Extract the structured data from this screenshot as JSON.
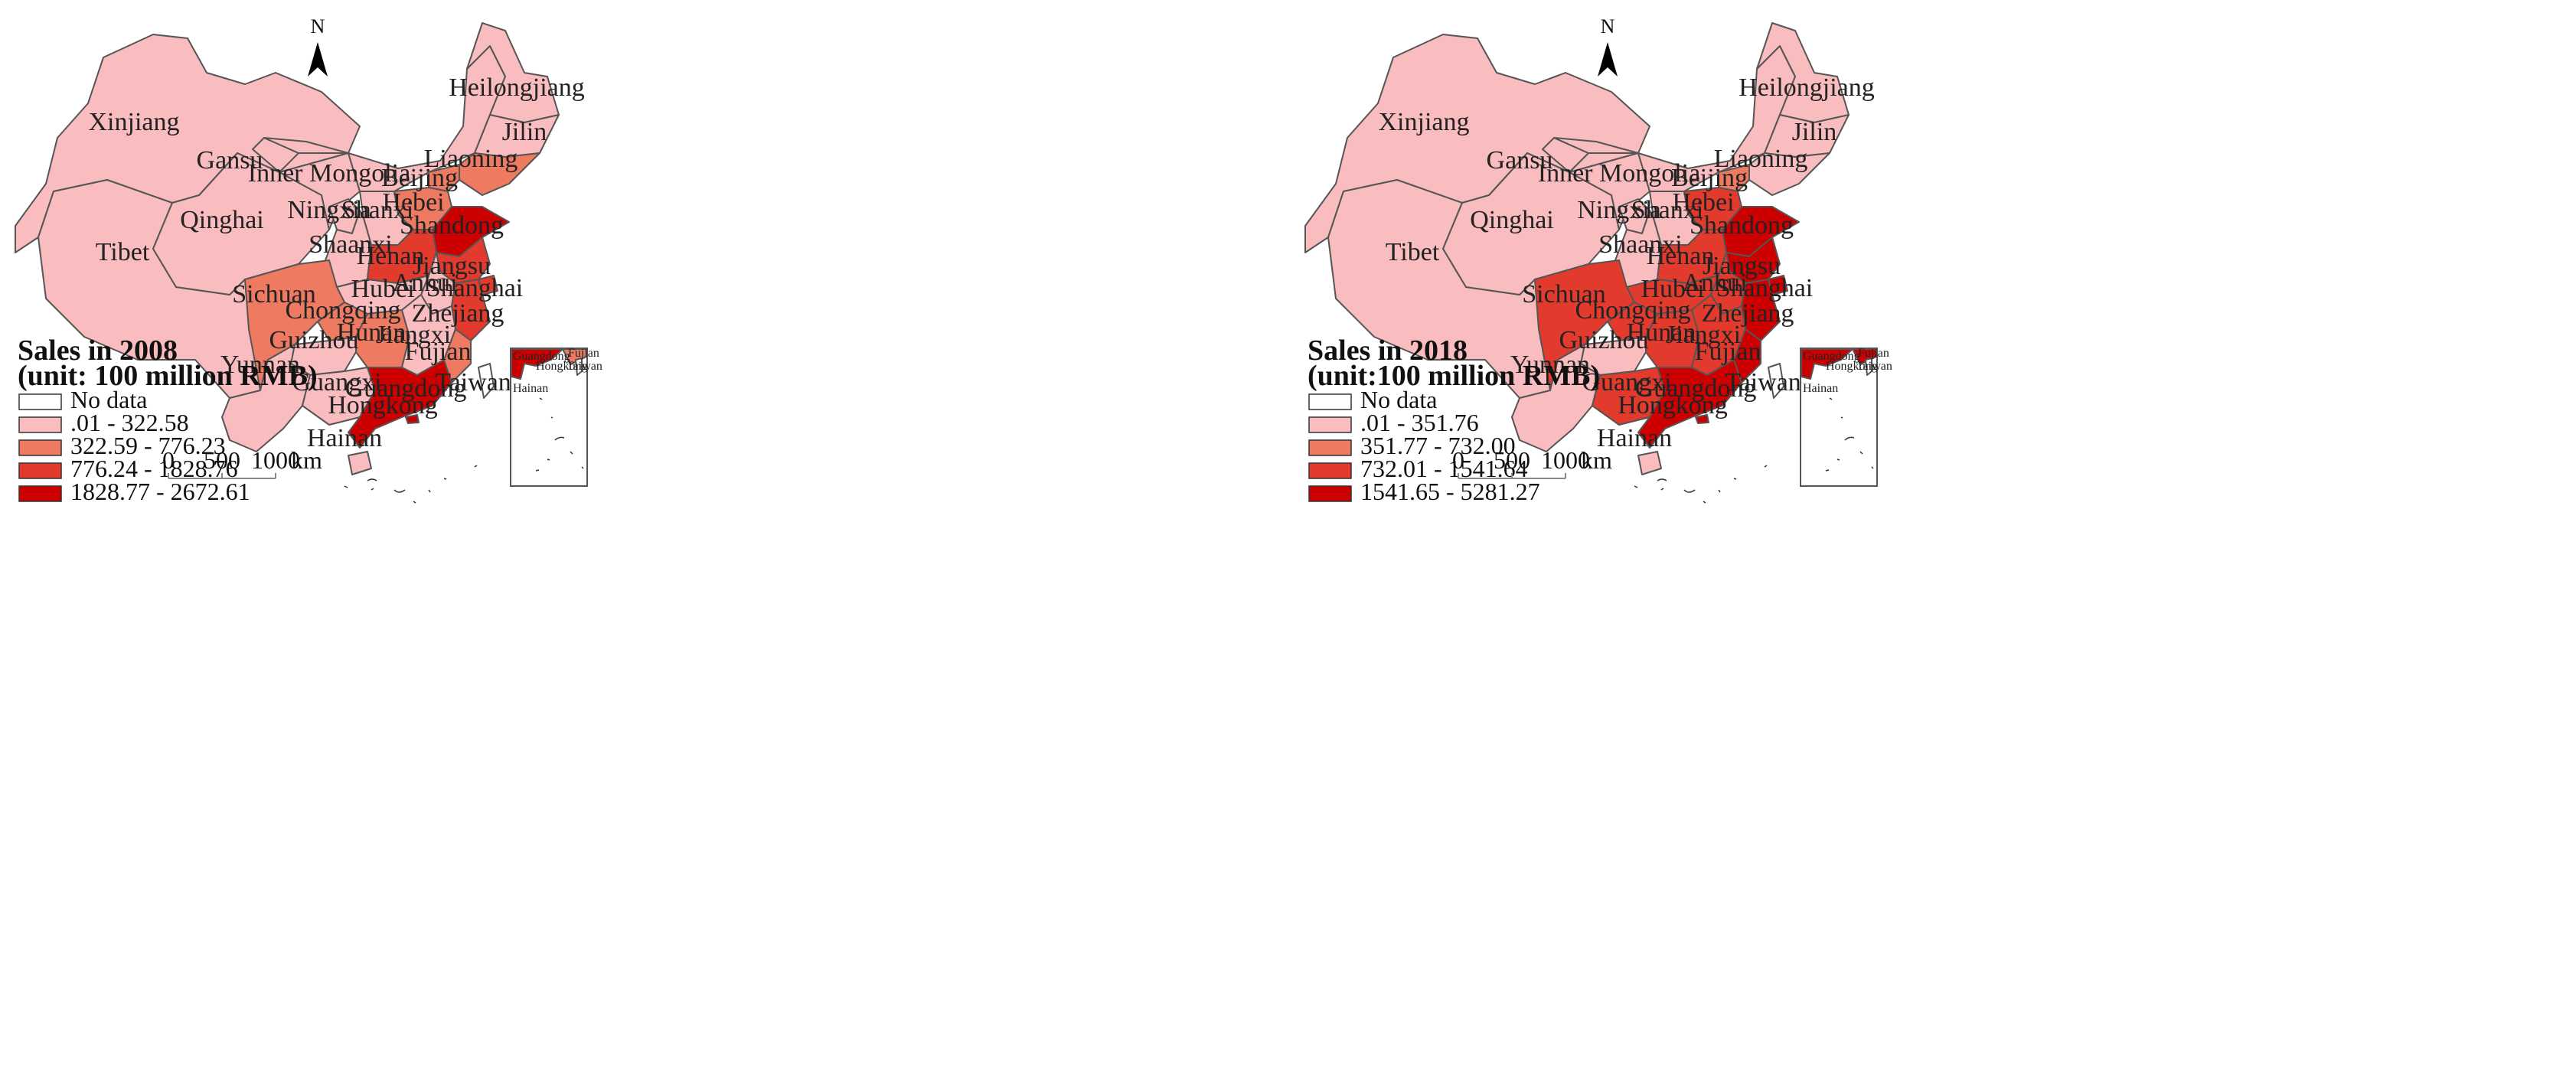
{
  "colors": {
    "no_data": "#ffffff",
    "class_1": "#f9bcbf",
    "class_2": "#ef7a62",
    "class_3": "#e23b2e",
    "class_4": "#cc0000",
    "border": "#555555"
  },
  "north_label": "N",
  "scale_bar": {
    "ticks": [
      "0",
      "500",
      "1000"
    ],
    "unit": "km"
  },
  "inset_labels": {
    "guangdong": "Guangdong",
    "hongkong": "Hongkong",
    "fujian": "Fujian",
    "taiwan": "Taiwan",
    "hainan": "Hainan"
  },
  "maps": [
    {
      "year": "2008",
      "legend_title_line1": "Sales in 2008",
      "legend_title_line2": "(unit: 100 million RMB)",
      "legend": [
        "No data",
        ".01 - 322.58",
        "322.59 - 776.23",
        "776.24 - 1828.76",
        "1828.77 - 2672.61"
      ],
      "provinces": {
        "xinjiang": {
          "label": "Xinjiang",
          "class": 1
        },
        "tibet": {
          "label": "Tibet",
          "class": 1
        },
        "qinghai": {
          "label": "Qinghai",
          "class": 1
        },
        "gansu": {
          "label": "Gansu",
          "class": 1
        },
        "inner_mongolia": {
          "label": "Inner Mongolia",
          "class": 1
        },
        "heilongjiang": {
          "label": "Heilongjiang",
          "class": 1
        },
        "jilin": {
          "label": "Jilin",
          "class": 1
        },
        "liaoning": {
          "label": "Liaoning",
          "class": 2
        },
        "beijing": {
          "label": "Beijing",
          "class": 2
        },
        "hebei": {
          "label": "Hebei",
          "class": 2
        },
        "shandong": {
          "label": "Shandong",
          "class": 4
        },
        "shanxi": {
          "label": "Shanxi",
          "class": 1
        },
        "ningxia": {
          "label": "Ningxia",
          "class": 1
        },
        "shaanxi": {
          "label": "Shaanxi",
          "class": 1
        },
        "henan": {
          "label": "Henan",
          "class": 3
        },
        "jiangsu": {
          "label": "Jiangsu",
          "class": 3
        },
        "anhui": {
          "label": "Anhui",
          "class": 1
        },
        "shanghai": {
          "label": "Shanghai",
          "class": 3
        },
        "hubei": {
          "label": "Hubei",
          "class": 1
        },
        "sichuan": {
          "label": "Sichuan",
          "class": 2
        },
        "chongqing": {
          "label": "Chongqing",
          "class": 2
        },
        "zhejiang": {
          "label": "Zhejiang",
          "class": 3
        },
        "hunan": {
          "label": "Hunan",
          "class": 2
        },
        "jiangxi": {
          "label": "Jiangxi",
          "class": 1
        },
        "guizhou": {
          "label": "Guizhou",
          "class": 1
        },
        "yunnan": {
          "label": "Yunnan",
          "class": 1
        },
        "guangxi": {
          "label": "Guangxi",
          "class": 1
        },
        "guangdong": {
          "label": "Guangdong",
          "class": 4
        },
        "fujian": {
          "label": "Fujian",
          "class": 2
        },
        "taiwan": {
          "label": "Taiwan",
          "class": 0
        },
        "hongkong": {
          "label": "Hongkong",
          "class": 4
        },
        "hainan": {
          "label": "Hainan",
          "class": 1
        }
      }
    },
    {
      "year": "2018",
      "legend_title_line1": "Sales in 2018",
      "legend_title_line2": "(unit:100 million RMB)",
      "legend": [
        "No data",
        ".01 - 351.76",
        "351.77 - 732.00",
        "732.01 - 1541.64",
        "1541.65 - 5281.27"
      ],
      "provinces": {
        "xinjiang": {
          "label": "Xinjiang",
          "class": 1
        },
        "tibet": {
          "label": "Tibet",
          "class": 1
        },
        "qinghai": {
          "label": "Qinghai",
          "class": 1
        },
        "gansu": {
          "label": "Gansu",
          "class": 1
        },
        "inner_mongolia": {
          "label": "Inner Mongolia",
          "class": 1
        },
        "heilongjiang": {
          "label": "Heilongjiang",
          "class": 1
        },
        "jilin": {
          "label": "Jilin",
          "class": 1
        },
        "liaoning": {
          "label": "Liaoning",
          "class": 1
        },
        "beijing": {
          "label": "Beijing",
          "class": 2
        },
        "hebei": {
          "label": "Hebei",
          "class": 3
        },
        "shandong": {
          "label": "Shandong",
          "class": 4
        },
        "shanxi": {
          "label": "Shanxi",
          "class": 1
        },
        "ningxia": {
          "label": "Ningxia",
          "class": 1
        },
        "shaanxi": {
          "label": "Shaanxi",
          "class": 1
        },
        "henan": {
          "label": "Henan",
          "class": 3
        },
        "jiangsu": {
          "label": "Jiangsu",
          "class": 4
        },
        "anhui": {
          "label": "Anhui",
          "class": 3
        },
        "shanghai": {
          "label": "Shanghai",
          "class": 4
        },
        "hubei": {
          "label": "Hubei",
          "class": 3
        },
        "sichuan": {
          "label": "Sichuan",
          "class": 3
        },
        "chongqing": {
          "label": "Chongqing",
          "class": 3
        },
        "zhejiang": {
          "label": "Zhejiang",
          "class": 4
        },
        "hunan": {
          "label": "Hunan",
          "class": 3
        },
        "jiangxi": {
          "label": "Jiangxi",
          "class": 3
        },
        "guizhou": {
          "label": "Guizhou",
          "class": 1
        },
        "yunnan": {
          "label": "Yunnan",
          "class": 1
        },
        "guangxi": {
          "label": "Guangxi",
          "class": 3
        },
        "guangdong": {
          "label": "Guangdong",
          "class": 4
        },
        "fujian": {
          "label": "Fujian",
          "class": 4
        },
        "taiwan": {
          "label": "Taiwan",
          "class": 0
        },
        "hongkong": {
          "label": "Hongkong",
          "class": 4
        },
        "hainan": {
          "label": "Hainan",
          "class": 1
        }
      }
    }
  ]
}
